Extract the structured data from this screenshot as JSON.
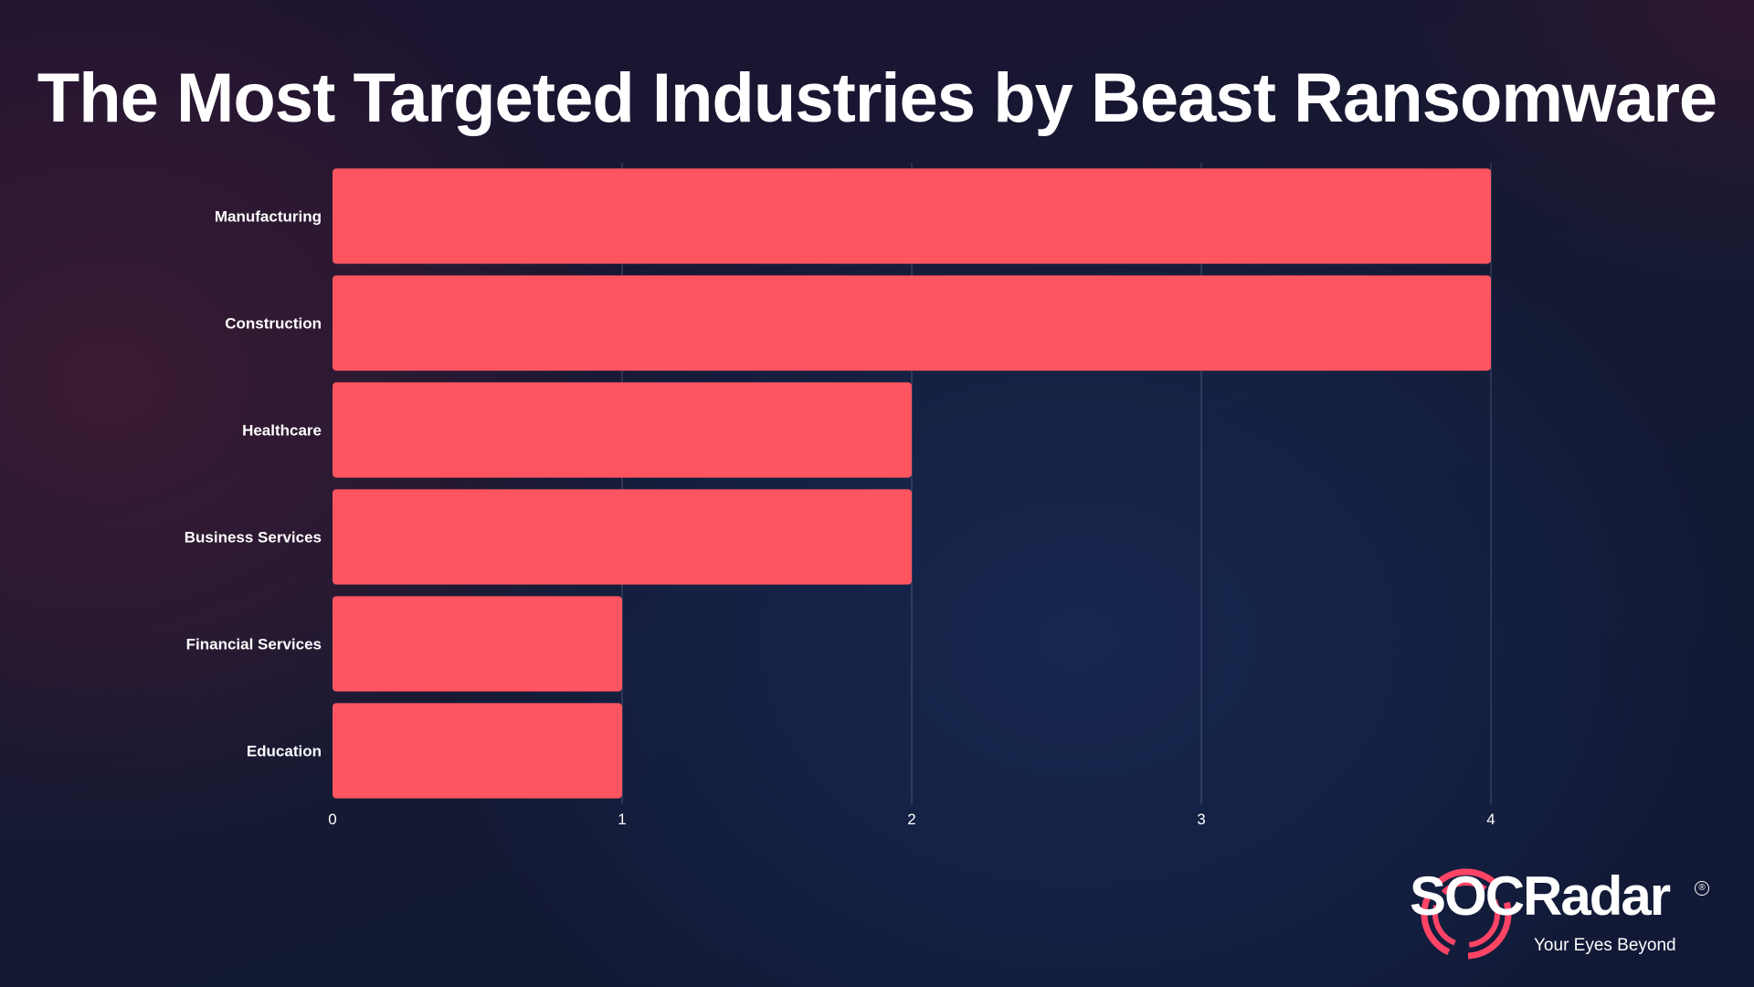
{
  "title": "The Most Targeted Industries by Beast Ransomware",
  "chart_data": {
    "type": "bar",
    "orientation": "horizontal",
    "categories": [
      "Manufacturing",
      "Construction",
      "Healthcare",
      "Business Services",
      "Financial Services",
      "Education"
    ],
    "values": [
      4,
      4,
      2,
      2,
      1,
      1
    ],
    "xlim": [
      0,
      4
    ],
    "xticks": [
      0,
      1,
      2,
      3,
      4
    ],
    "grid": true,
    "bar_color": "#ff5561"
  },
  "brand": {
    "name": "SOCRadar",
    "tagline": "Your Eyes Beyond",
    "registered": "®",
    "accent": "#ff4466"
  }
}
